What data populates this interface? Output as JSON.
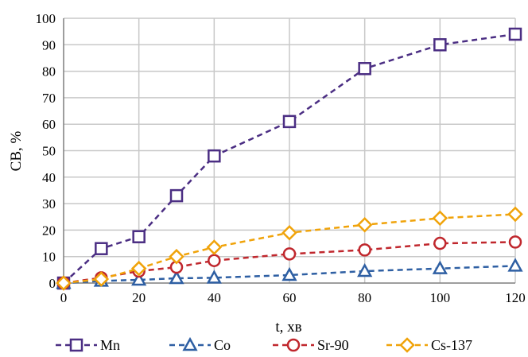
{
  "chart_data": {
    "type": "line",
    "title": "",
    "xlabel": "t, хв",
    "ylabel": "СВ, %",
    "xlim": [
      0,
      120
    ],
    "ylim": [
      0,
      100
    ],
    "x_ticks": [
      0,
      20,
      40,
      60,
      80,
      100,
      120
    ],
    "y_ticks": [
      0,
      10,
      20,
      30,
      40,
      50,
      60,
      70,
      80,
      90,
      100
    ],
    "grid": true,
    "legend_position": "bottom",
    "series": [
      {
        "name": "Mn",
        "color": "#4b2e83",
        "marker": "square",
        "points": [
          [
            0,
            0
          ],
          [
            10,
            13
          ],
          [
            20,
            17.5
          ],
          [
            30,
            33
          ],
          [
            40,
            48
          ],
          [
            60,
            61
          ],
          [
            80,
            81
          ],
          [
            100,
            90
          ],
          [
            120,
            94
          ]
        ]
      },
      {
        "name": "Co",
        "color": "#2e5fa3",
        "marker": "triangle",
        "points": [
          [
            0,
            0
          ],
          [
            10,
            0.8
          ],
          [
            20,
            1.2
          ],
          [
            30,
            1.8
          ],
          [
            40,
            2
          ],
          [
            60,
            3
          ],
          [
            80,
            4.5
          ],
          [
            100,
            5.5
          ],
          [
            120,
            6.5
          ]
        ]
      },
      {
        "name": "Sr-90",
        "color": "#c0272d",
        "marker": "circle",
        "points": [
          [
            0,
            0
          ],
          [
            10,
            2
          ],
          [
            20,
            4.5
          ],
          [
            30,
            6
          ],
          [
            40,
            8.5
          ],
          [
            60,
            11
          ],
          [
            80,
            12.5
          ],
          [
            100,
            15
          ],
          [
            120,
            15.5
          ]
        ]
      },
      {
        "name": "Cs-137",
        "color": "#f0a30a",
        "marker": "diamond",
        "points": [
          [
            0,
            0
          ],
          [
            10,
            1.5
          ],
          [
            20,
            5.5
          ],
          [
            30,
            10
          ],
          [
            40,
            13.5
          ],
          [
            60,
            19
          ],
          [
            80,
            22
          ],
          [
            100,
            24.5
          ],
          [
            120,
            26
          ]
        ]
      }
    ]
  }
}
